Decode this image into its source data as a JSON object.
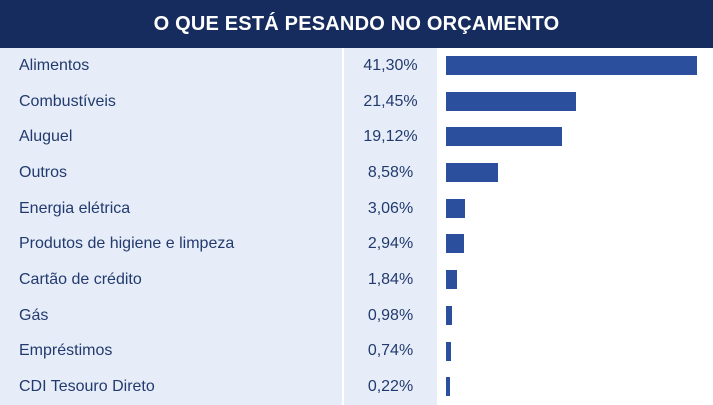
{
  "chart_data": {
    "type": "bar",
    "orientation": "horizontal",
    "title": "O QUE ESTÁ PESANDO NO ORÇAMENTO",
    "categories": [
      "Alimentos",
      "Combustíveis",
      "Aluguel",
      "Outros",
      "Energia elétrica",
      "Produtos de higiene e limpeza",
      "Cartão de crédito",
      "Gás",
      "Empréstimos",
      "CDI Tesouro Direto"
    ],
    "values": [
      41.3,
      21.45,
      19.12,
      8.58,
      3.06,
      2.94,
      1.84,
      0.98,
      0.74,
      0.22
    ],
    "value_labels": [
      "41,30%",
      "21,45%",
      "19,12%",
      "8,58%",
      "3,06%",
      "2,94%",
      "1,84%",
      "0,98%",
      "0,74%",
      "0,22%"
    ],
    "unit": "%",
    "xlim": [
      0,
      41.3
    ],
    "grid": false,
    "legend": "none",
    "colors": {
      "header_bg": "#162c5e",
      "row_bg": "#e6edf8",
      "text": "#223a6e",
      "bar": "#2b4f9c"
    }
  }
}
